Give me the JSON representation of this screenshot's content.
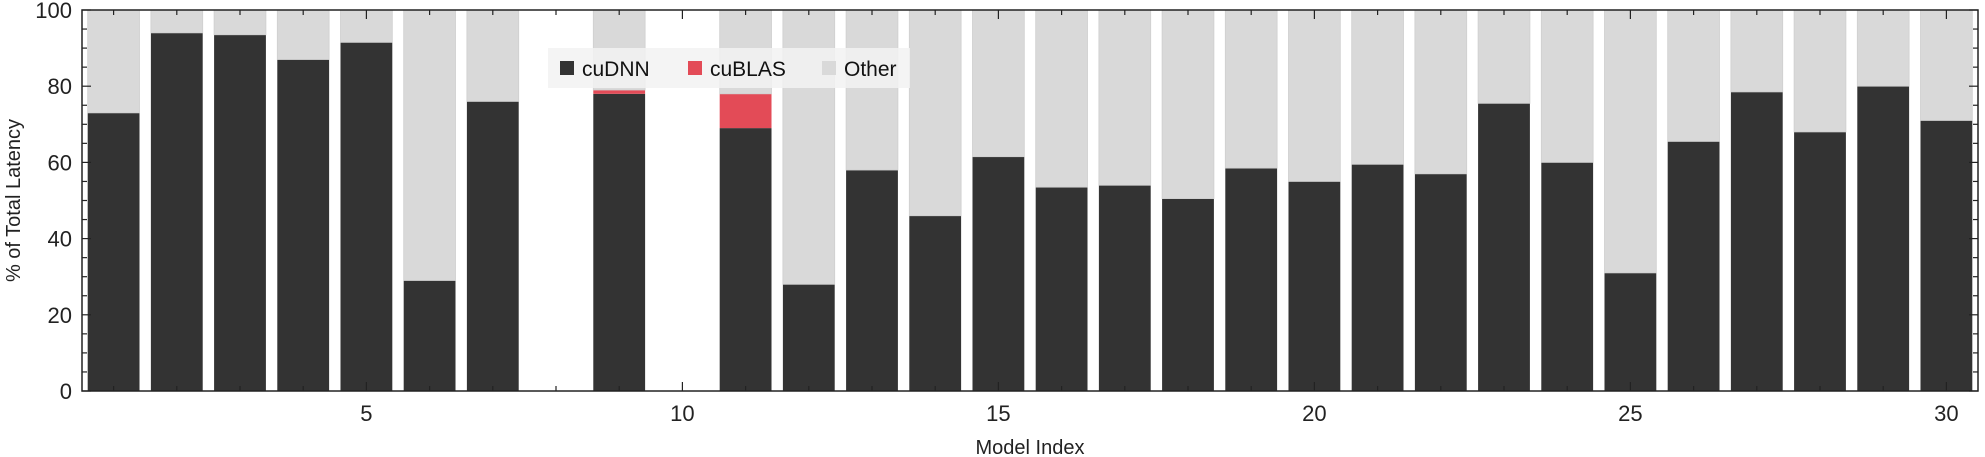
{
  "chart_data": {
    "type": "bar",
    "stacked": true,
    "xlabel": "Model Index",
    "ylabel": "% of Total Latency",
    "ylim": [
      0,
      100
    ],
    "xlim": [
      0.5,
      30.5
    ],
    "x_ticks": [
      "5",
      "10",
      "15",
      "20",
      "25",
      "30"
    ],
    "y_ticks": [
      "0",
      "20",
      "40",
      "60",
      "80",
      "100"
    ],
    "legend_position": "top-left",
    "x": [
      1,
      2,
      3,
      4,
      5,
      6,
      7,
      8,
      9,
      10,
      11,
      12,
      13,
      14,
      15,
      16,
      17,
      18,
      19,
      20,
      21,
      22,
      23,
      24,
      25,
      26,
      27,
      28,
      29,
      30
    ],
    "series": [
      {
        "name": "cuDNN",
        "color": "#333333",
        "values": [
          73,
          94,
          93.5,
          87,
          91.5,
          29,
          76,
          0,
          78,
          0,
          69,
          28,
          58,
          46,
          61.5,
          53.5,
          54,
          50.5,
          58.5,
          55,
          59.5,
          57,
          75.5,
          60,
          31,
          65.5,
          78.5,
          68,
          80,
          71
        ]
      },
      {
        "name": "cuBLAS",
        "color": "#e34b57",
        "values": [
          0,
          0,
          0,
          0,
          0,
          0,
          0,
          0,
          1,
          0,
          9,
          0,
          0,
          0,
          0,
          0,
          0,
          0,
          0,
          0,
          0,
          0,
          0,
          0,
          0,
          0,
          0,
          0,
          0,
          0
        ]
      },
      {
        "name": "Other",
        "color": "#d9d9d9",
        "values": [
          27,
          6,
          6.5,
          13,
          8.5,
          71,
          24,
          0,
          21,
          0,
          22,
          72,
          42,
          54,
          38.5,
          46.5,
          46,
          49.5,
          41.5,
          45,
          40.5,
          43,
          24.5,
          40,
          69,
          34.5,
          21.5,
          32,
          20,
          29
        ]
      }
    ]
  }
}
